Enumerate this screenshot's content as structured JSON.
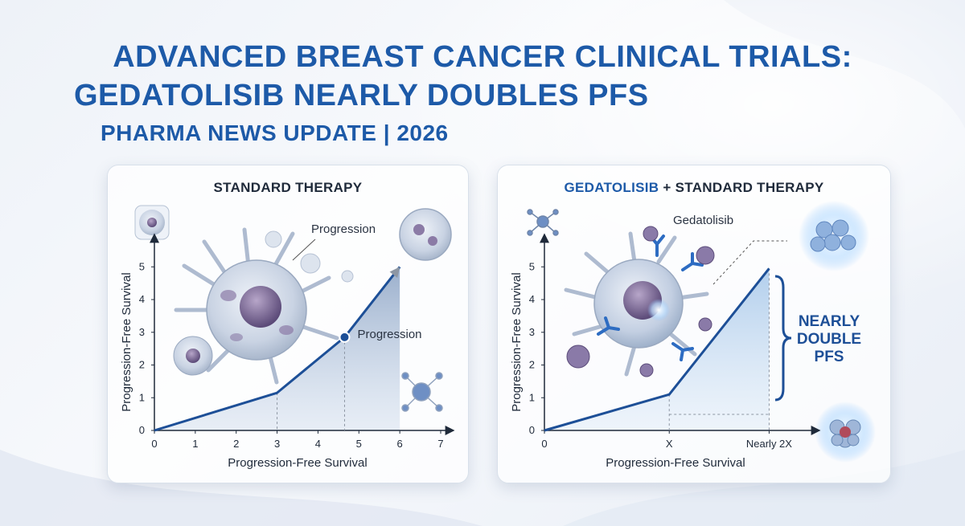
{
  "header": {
    "title_line1": "ADVANCED BREAST CANCER CLINICAL TRIALS:",
    "title_line2": "GEDATOLISIB NEARLY DOUBLES PFS",
    "subtitle": "PHARMA NEWS UPDATE | 2026"
  },
  "colors": {
    "headline": "#1d5aa8",
    "line": "#1d4f97",
    "fill": "#b9d3ee",
    "text": "#1f2a3a"
  },
  "icons": [
    "cancer-cell-icon",
    "molecule-icon",
    "antibody-icon",
    "cell-cluster-icon"
  ],
  "chart_data": [
    {
      "type": "line",
      "title": "STANDARD THERAPY",
      "xlabel": "Progression-Free Survival",
      "ylabel": "Progression-Free Survival",
      "x_ticks": [
        "0",
        "1",
        "2",
        "3",
        "4",
        "5",
        "6",
        "7"
      ],
      "y_ticks": [
        "0",
        "1",
        "2",
        "3",
        "4",
        "5"
      ],
      "xlim": [
        0,
        7
      ],
      "ylim": [
        0,
        5.4
      ],
      "points": [
        [
          0,
          0
        ],
        [
          3,
          1.15
        ],
        [
          4.65,
          2.85
        ],
        [
          6,
          5
        ]
      ],
      "marker_point": [
        4.65,
        2.85
      ],
      "annotations": [
        "Progression",
        "Progression"
      ]
    },
    {
      "type": "line",
      "title_prefix": "GEDATOLISIB",
      "title_suffix": "+ STANDARD THERAPY",
      "xlabel": "Progression-Free Survival",
      "ylabel": "Progression-Free Survival",
      "x_ticks": [
        "0",
        "X",
        "Nearly 2X"
      ],
      "x_tick_positions": [
        0,
        1,
        1.8
      ],
      "y_ticks": [
        "0",
        "1",
        "2",
        "3",
        "4",
        "5"
      ],
      "xlim": [
        0,
        2.1
      ],
      "ylim": [
        0,
        5.4
      ],
      "points": [
        [
          0,
          0
        ],
        [
          1,
          1.1
        ],
        [
          1.8,
          4.95
        ]
      ],
      "annotations": [
        "Gedatolisib"
      ],
      "callout": [
        "NEARLY",
        "DOUBLE",
        "PFS"
      ]
    }
  ]
}
